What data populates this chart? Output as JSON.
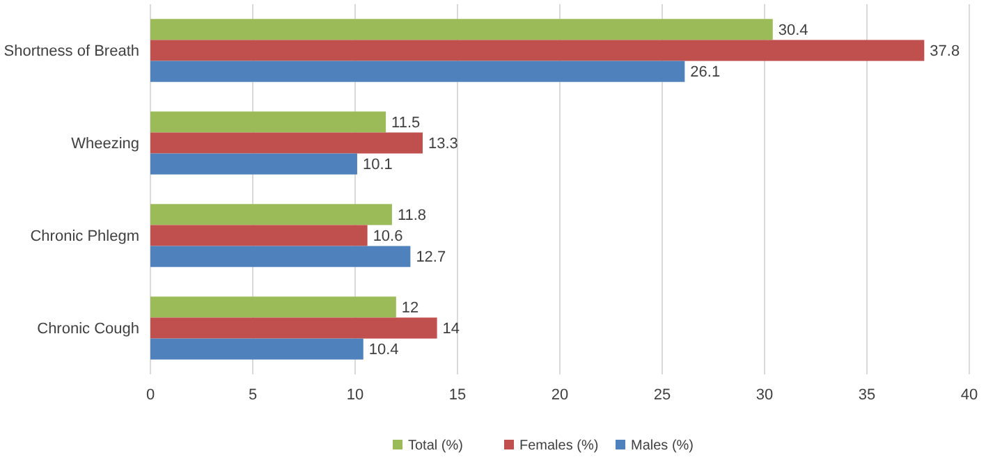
{
  "chart_data": {
    "type": "bar",
    "orientation": "horizontal",
    "categories": [
      "Shortness of Breath",
      "Wheezing",
      "Chronic Phlegm",
      "Chronic Cough"
    ],
    "series": [
      {
        "name": "Total (%)",
        "color": "#9bbb59",
        "values": [
          30.4,
          11.5,
          11.8,
          12
        ]
      },
      {
        "name": "Females (%)",
        "color": "#c0504d",
        "values": [
          37.8,
          13.3,
          10.6,
          14
        ]
      },
      {
        "name": "Males (%)",
        "color": "#4f81bd",
        "values": [
          26.1,
          10.1,
          12.7,
          10.4
        ]
      }
    ],
    "xlim": [
      0,
      40
    ],
    "xticks": [
      0,
      5,
      10,
      15,
      20,
      25,
      30,
      35,
      40
    ],
    "grid": "x",
    "legend": "bottom",
    "data_labels": true
  }
}
